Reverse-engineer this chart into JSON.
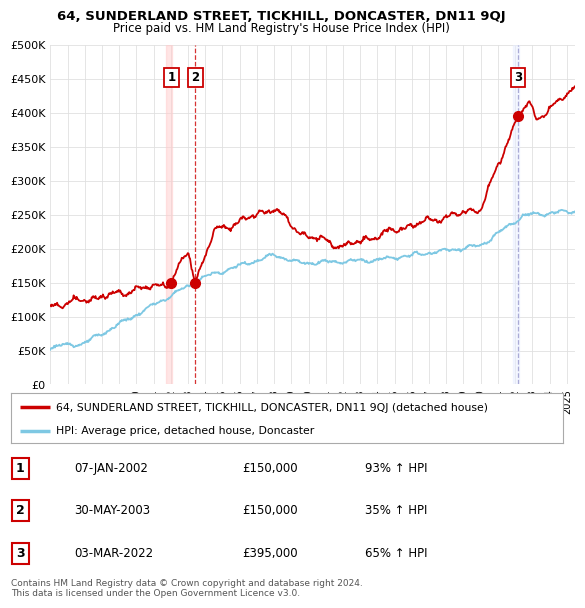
{
  "title1": "64, SUNDERLAND STREET, TICKHILL, DONCASTER, DN11 9QJ",
  "title2": "Price paid vs. HM Land Registry's House Price Index (HPI)",
  "ylim": [
    0,
    500000
  ],
  "yticks": [
    0,
    50000,
    100000,
    150000,
    200000,
    250000,
    300000,
    350000,
    400000,
    450000,
    500000
  ],
  "xlim_start": 1995.0,
  "xlim_end": 2025.5,
  "sale_dates": [
    2002.03,
    2003.42,
    2022.17
  ],
  "sale_prices": [
    150000,
    150000,
    395000
  ],
  "sale_labels": [
    "1",
    "2",
    "3"
  ],
  "hpi_color": "#7ec8e3",
  "price_color": "#cc0000",
  "legend_price_label": "64, SUNDERLAND STREET, TICKHILL, DONCASTER, DN11 9QJ (detached house)",
  "legend_hpi_label": "HPI: Average price, detached house, Doncaster",
  "table_rows": [
    [
      "1",
      "07-JAN-2002",
      "£150,000",
      "93% ↑ HPI"
    ],
    [
      "2",
      "30-MAY-2003",
      "£150,000",
      "35% ↑ HPI"
    ],
    [
      "3",
      "03-MAR-2022",
      "£395,000",
      "65% ↑ HPI"
    ]
  ],
  "footnote": "Contains HM Land Registry data © Crown copyright and database right 2024.\nThis data is licensed under the Open Government Licence v3.0.",
  "background_color": "#ffffff",
  "grid_color": "#e0e0e0"
}
